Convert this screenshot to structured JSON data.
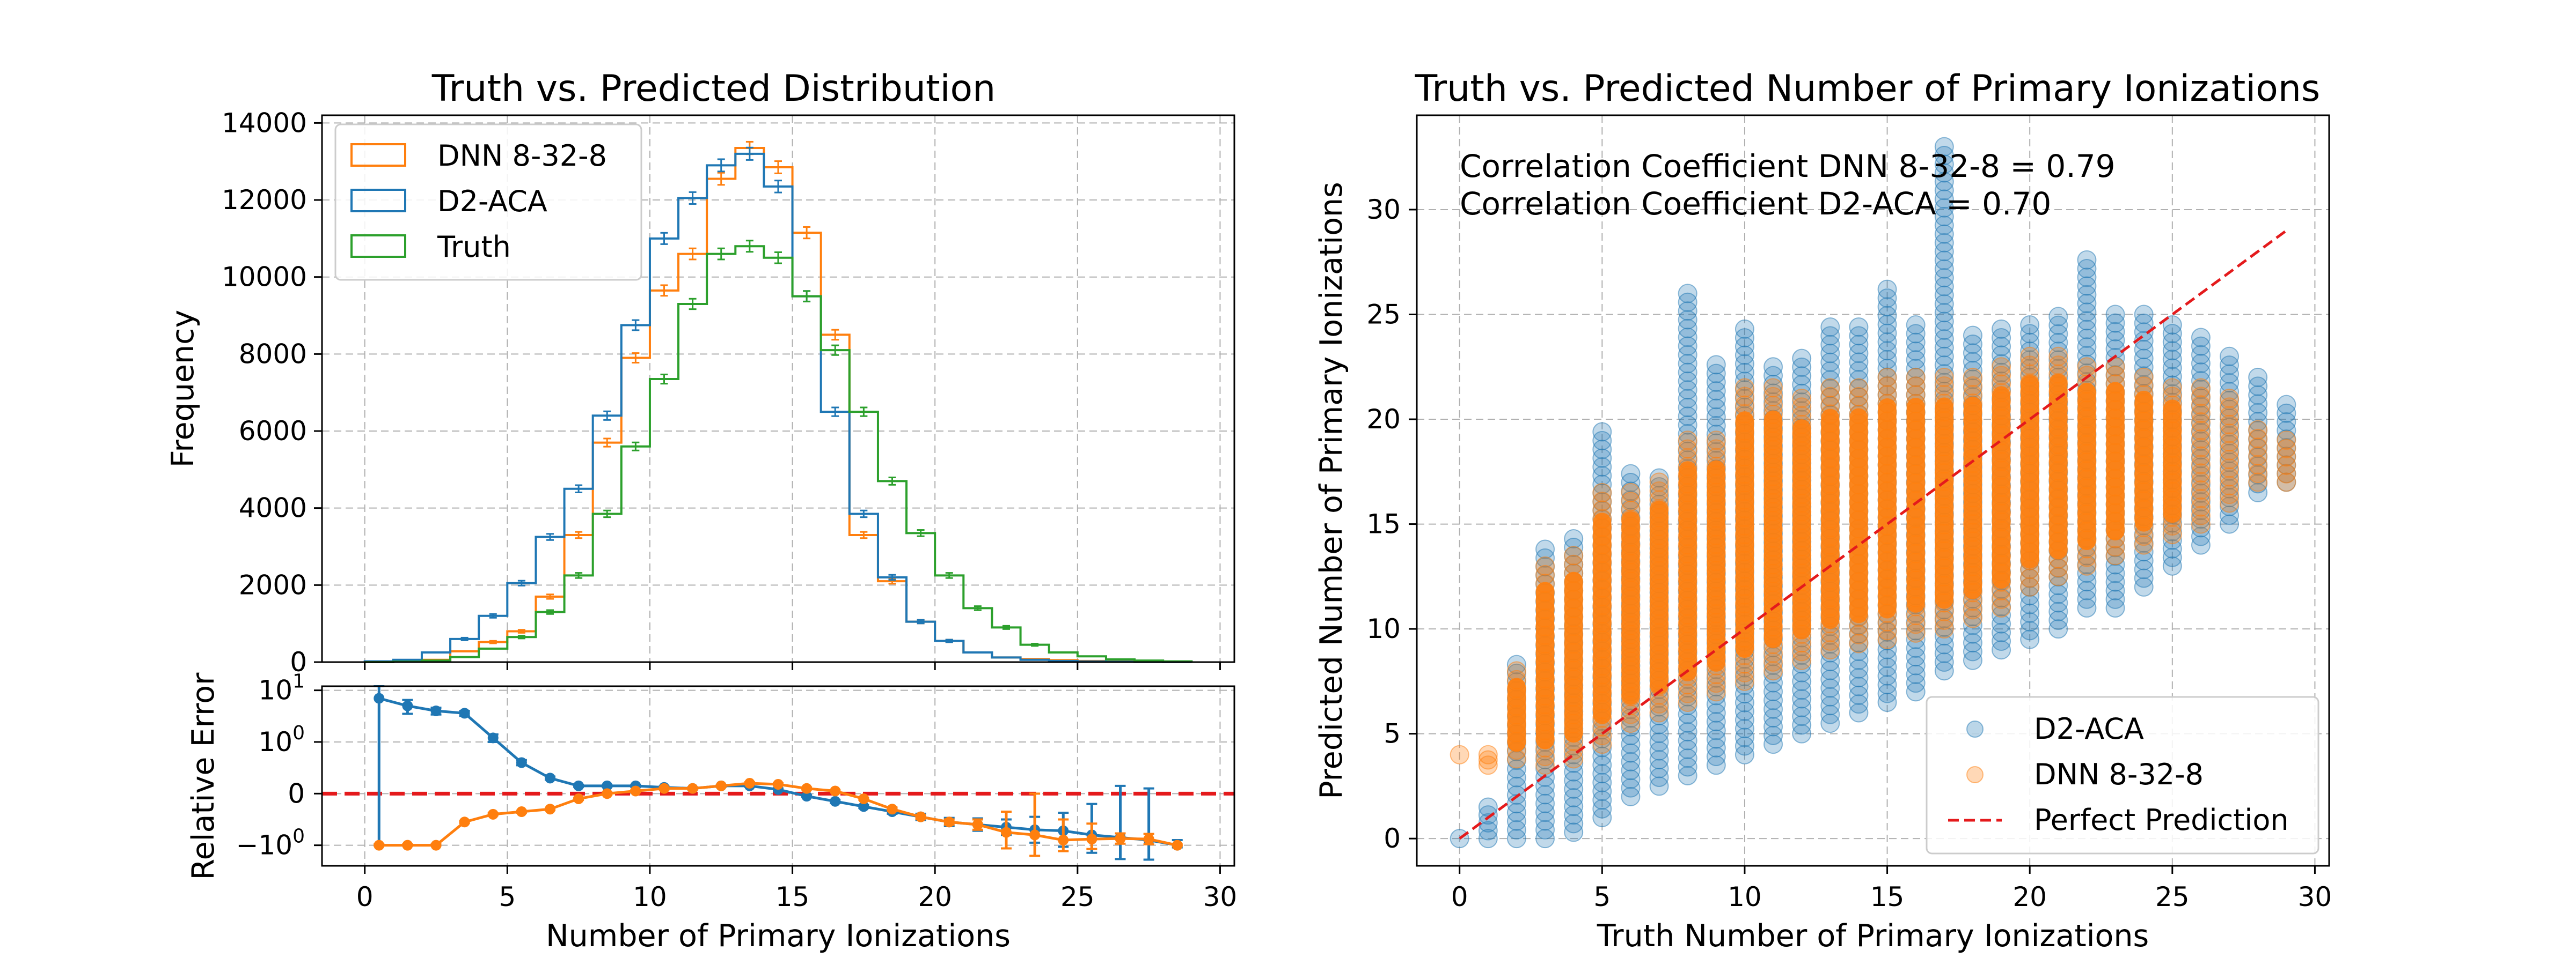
{
  "colors": {
    "dnn": "#ff7f0e",
    "d2aca": "#1f77b4",
    "truth": "#2ca02c",
    "perfect": "#e41a1c"
  },
  "chart_data": [
    {
      "type": "histogram",
      "title": "Truth vs. Predicted Distribution",
      "xlabel": "",
      "ylabel": "Frequency",
      "xlim": [
        -1.5,
        30.5
      ],
      "ylim": [
        0,
        14200
      ],
      "xticks": [
        0,
        5,
        10,
        15,
        20,
        25,
        30
      ],
      "yticks": [
        0,
        2000,
        4000,
        6000,
        8000,
        10000,
        12000,
        14000
      ],
      "bin_edges": [
        0,
        1,
        2,
        3,
        4,
        5,
        6,
        7,
        8,
        9,
        10,
        11,
        12,
        13,
        14,
        15,
        16,
        17,
        18,
        19,
        20,
        21,
        22,
        23,
        24,
        25,
        26,
        27,
        28,
        29
      ],
      "legend_position": "upper-left",
      "series": [
        {
          "name": "DNN 8-32-8",
          "color_key": "dnn",
          "values": [
            0,
            30,
            60,
            280,
            520,
            800,
            1700,
            3300,
            5700,
            7900,
            9650,
            10600,
            12550,
            13350,
            12850,
            11150,
            8500,
            3300,
            2100,
            1050,
            550,
            250,
            120,
            80,
            50,
            30,
            20,
            10,
            5
          ]
        },
        {
          "name": "D2-ACA",
          "color_key": "d2aca",
          "values": [
            20,
            60,
            250,
            600,
            1200,
            2050,
            3250,
            4500,
            6400,
            8750,
            11000,
            12050,
            12900,
            13200,
            12350,
            9500,
            6500,
            3850,
            2200,
            1050,
            550,
            250,
            120,
            60,
            30,
            15,
            8,
            4,
            2
          ]
        },
        {
          "name": "Truth",
          "color_key": "truth",
          "values": [
            0,
            10,
            40,
            130,
            350,
            650,
            1300,
            2250,
            3850,
            5600,
            7350,
            9300,
            10600,
            10800,
            10500,
            9500,
            8100,
            6500,
            4700,
            3350,
            2250,
            1400,
            900,
            450,
            250,
            150,
            70,
            40,
            20
          ]
        }
      ]
    },
    {
      "type": "line",
      "title": "",
      "xlabel": "Number of Primary Ionizations",
      "ylabel": "Relative Error",
      "xlim": [
        -1.5,
        30.5
      ],
      "yscale": "symlog",
      "ylim": [
        -2.5,
        12
      ],
      "xticks": [
        0,
        5,
        10,
        15,
        20,
        25,
        30
      ],
      "yticks": [
        {
          "value": 10,
          "label": "10",
          "exp": "1"
        },
        {
          "value": 1,
          "label": "10",
          "exp": "0"
        },
        {
          "value": 0,
          "label": "0",
          "exp": ""
        },
        {
          "value": -1,
          "label": "−10",
          "exp": "0"
        }
      ],
      "reference_line": 0,
      "series": [
        {
          "name": "D2-ACA",
          "color_key": "d2aca",
          "x": [
            0.5,
            1.5,
            2.5,
            3.5,
            4.5,
            5.5,
            6.5,
            7.5,
            8.5,
            9.5,
            10.5,
            11.5,
            12.5,
            13.5,
            14.5,
            15.5,
            16.5,
            17.5,
            18.5,
            19.5,
            20.5,
            21.5,
            22.5,
            23.5,
            24.5,
            25.5,
            26.5,
            27.5,
            28.5
          ],
          "y": [
            7,
            5,
            4,
            3.6,
            1.2,
            0.6,
            0.3,
            0.15,
            0.15,
            0.15,
            0.12,
            0.1,
            0.15,
            0.15,
            0.08,
            -0.05,
            -0.15,
            -0.25,
            -0.35,
            -0.45,
            -0.55,
            -0.6,
            -0.65,
            -0.7,
            -0.72,
            -0.8,
            -0.85,
            -0.9,
            -1.0
          ],
          "err": [
            8,
            1.5,
            0.6,
            0.4,
            0.2,
            0.05,
            0.03,
            0.02,
            0.02,
            0.02,
            0.02,
            0.02,
            0.02,
            0.02,
            0.02,
            0.02,
            0.03,
            0.03,
            0.04,
            0.06,
            0.08,
            0.12,
            0.15,
            0.25,
            0.35,
            0.6,
            1.0,
            1.0,
            0.1
          ]
        },
        {
          "name": "DNN 8-32-8",
          "color_key": "dnn",
          "x": [
            0.5,
            1.5,
            2.5,
            3.5,
            4.5,
            5.5,
            6.5,
            7.5,
            8.5,
            9.5,
            10.5,
            11.5,
            12.5,
            13.5,
            14.5,
            15.5,
            16.5,
            17.5,
            18.5,
            19.5,
            20.5,
            21.5,
            22.5,
            23.5,
            24.5,
            25.5,
            26.5,
            27.5,
            28.5
          ],
          "y": [
            -1.0,
            -1.0,
            -1.0,
            -0.55,
            -0.4,
            -0.35,
            -0.3,
            -0.1,
            0.0,
            0.05,
            0.1,
            0.1,
            0.15,
            0.2,
            0.18,
            0.1,
            0.05,
            -0.1,
            -0.3,
            -0.45,
            -0.55,
            -0.6,
            -0.75,
            -0.8,
            -0.9,
            -0.88,
            -0.87,
            -0.88,
            -1.0
          ],
          "err": [
            0.02,
            0.02,
            0.02,
            0.02,
            0.02,
            0.02,
            0.02,
            0.02,
            0.02,
            0.02,
            0.02,
            0.02,
            0.02,
            0.02,
            0.02,
            0.02,
            0.02,
            0.02,
            0.03,
            0.04,
            0.05,
            0.1,
            0.4,
            0.8,
            0.4,
            0.3,
            0.1,
            0.1,
            0.02
          ]
        }
      ]
    },
    {
      "type": "scatter",
      "title": "Truth vs. Predicted Number of Primary Ionizations",
      "xlabel": "Truth Number of Primary Ionizations",
      "ylabel": "Predicted Number of Primary Ionizations",
      "xlim": [
        -1.5,
        30.5
      ],
      "ylim": [
        -1.3,
        34.5
      ],
      "xticks": [
        0,
        5,
        10,
        15,
        20,
        25,
        30
      ],
      "yticks": [
        0,
        5,
        10,
        15,
        20,
        25,
        30
      ],
      "annotations": [
        "Correlation Coefficient DNN 8-32-8 = 0.79",
        "Correlation Coefficient D2-ACA = 0.70"
      ],
      "legend_position": "lower-right",
      "series": [
        {
          "name": "D2-ACA",
          "color_key": "d2aca",
          "x": [
            0,
            1,
            2,
            3,
            4,
            5,
            6,
            7,
            8,
            9,
            10,
            11,
            12,
            13,
            14,
            15,
            16,
            17,
            18,
            19,
            20,
            21,
            22,
            23,
            24,
            25,
            26,
            27,
            28,
            29
          ],
          "y_min": [
            0,
            0,
            0,
            0,
            0.3,
            1,
            2,
            2.5,
            3,
            3.5,
            4,
            4.5,
            5,
            5.5,
            6,
            6.5,
            7,
            8,
            8.5,
            9,
            9.5,
            10,
            11,
            11,
            12,
            13,
            14,
            15,
            16.5,
            17
          ],
          "y_max": [
            0,
            1.5,
            8.3,
            13.8,
            14.3,
            19.4,
            17.4,
            17.2,
            26,
            22.6,
            24.3,
            22.5,
            22.9,
            24.4,
            24.4,
            26.2,
            24.5,
            33,
            24,
            24.3,
            24.5,
            24.9,
            27.6,
            25,
            25,
            24.5,
            23.9,
            23,
            22,
            20.7
          ]
        },
        {
          "name": "DNN 8-32-8",
          "color_key": "dnn",
          "x": [
            0,
            1,
            2,
            3,
            4,
            5,
            6,
            7,
            8,
            9,
            10,
            11,
            12,
            13,
            14,
            15,
            16,
            17,
            18,
            19,
            20,
            21,
            22,
            23,
            24,
            25,
            26,
            27,
            28,
            29
          ],
          "y_min": [
            4,
            3.5,
            3.8,
            3.5,
            3.8,
            4.5,
            5.5,
            6,
            6.5,
            7,
            7.5,
            8,
            8.5,
            9,
            9.3,
            9.5,
            9.8,
            10,
            10.5,
            11,
            12,
            12.5,
            13,
            13.5,
            14,
            14.5,
            15,
            16,
            17,
            17
          ],
          "y_max": [
            4,
            4,
            8,
            13,
            13.5,
            16.5,
            16.5,
            17,
            19,
            19,
            21.5,
            21.5,
            21,
            21.5,
            21.5,
            22,
            22,
            22,
            22,
            22.5,
            23,
            23,
            22.5,
            22.5,
            22,
            21.5,
            21.5,
            21,
            19.5,
            19
          ]
        },
        {
          "name": "Perfect Prediction",
          "color_key": "perfect",
          "x": [
            0,
            29
          ],
          "y": [
            0,
            29
          ]
        }
      ]
    }
  ]
}
